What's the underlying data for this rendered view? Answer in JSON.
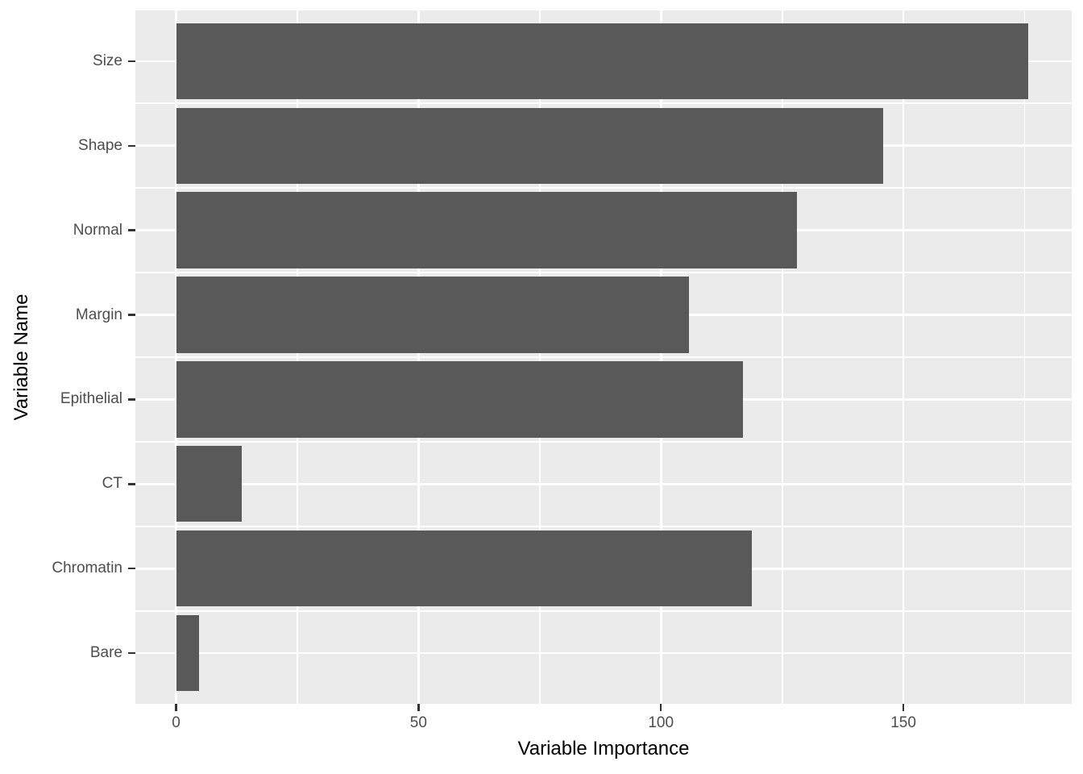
{
  "chart_data": {
    "type": "bar",
    "orientation": "horizontal",
    "title": "",
    "xlabel": "Variable Importance",
    "ylabel": "Variable Name",
    "categories": [
      "Size",
      "Shape",
      "Normal",
      "Margin",
      "Epithelial",
      "CT",
      "Chromatin",
      "Bare"
    ],
    "values": [
      175.7,
      145.8,
      128.0,
      105.8,
      116.9,
      13.5,
      118.8,
      4.8
    ],
    "series": [
      {
        "name": "Variable Importance",
        "values": [
          175.7,
          145.8,
          128.0,
          105.8,
          116.9,
          13.5,
          118.8,
          4.8
        ]
      }
    ],
    "x_ticks": [
      0,
      50,
      100,
      150
    ],
    "x_tick_labels": [
      "0",
      "50",
      "100",
      "150"
    ],
    "x_minor_ticks": [
      25,
      75,
      125,
      175
    ],
    "xlim": [
      -8.8,
      184.7
    ],
    "bar_width_fraction": 0.9,
    "grid": "white major and minor gridlines on grey panel",
    "legend_position": "none",
    "theme": "ggplot2-grey",
    "colors": {
      "bar_fill": "#595959",
      "panel_background": "#EBEBEB",
      "gridline": "#FFFFFF",
      "axis_text": "#4D4D4D",
      "axis_title": "#000000",
      "tick_mark": "#333333",
      "figure_background": "#FFFFFF"
    }
  }
}
